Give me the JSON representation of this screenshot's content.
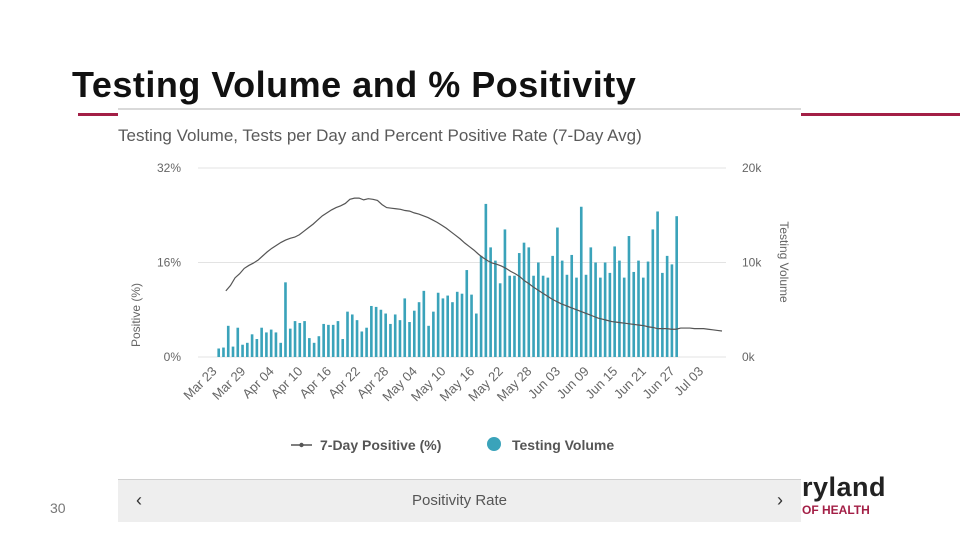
{
  "slide": {
    "title": "Testing Volume and % Positivity",
    "page_number": "30",
    "logo_main": "ryland",
    "logo_sub": "OF HEALTH"
  },
  "colors": {
    "accent": "#a31f46",
    "bar": "#3aa3ba",
    "line": "#555555"
  },
  "panel": {
    "nav_label": "Positivity Rate",
    "prev_icon": "‹",
    "next_icon": "›"
  },
  "chart_data": {
    "type": "bar+line",
    "title": "Testing Volume, Tests per Day and Percent Positive Rate (7-Day Avg)",
    "ylabel_left": "Positive (%)",
    "ylabel_right": "Testing Volume",
    "left_ticks": [
      "32%",
      "16%",
      "0%"
    ],
    "right_ticks": [
      "20k",
      "10k",
      "0k"
    ],
    "ylim_left": [
      0,
      32
    ],
    "ylim_right": [
      0,
      20000
    ],
    "x_tick_labels": [
      "Mar 23",
      "Mar 29",
      "Apr 04",
      "Apr 10",
      "Apr 16",
      "Apr 22",
      "Apr 28",
      "May 04",
      "May 10",
      "May 16",
      "May 22",
      "May 28",
      "Jun 03",
      "Jun 09",
      "Jun 15",
      "Jun 21",
      "Jun 27",
      "Jul 03"
    ],
    "legend": [
      {
        "label": "7-Day Positive (%)",
        "marker": "line"
      },
      {
        "label": "Testing Volume",
        "marker": "circle"
      }
    ],
    "series": [
      {
        "name": "Testing Volume",
        "type": "bar",
        "axis": "right",
        "start": "Mar 21",
        "values": [
          900,
          1000,
          3300,
          1100,
          3100,
          1300,
          1500,
          2400,
          1900,
          3100,
          2600,
          2900,
          2600,
          1500,
          7900,
          3000,
          3800,
          3600,
          3800,
          2000,
          1500,
          2200,
          3500,
          3400,
          3400,
          3800,
          1900,
          4800,
          4500,
          3900,
          2700,
          3100,
          5400,
          5300,
          5000,
          4600,
          3500,
          4500,
          3900,
          6200,
          3700,
          4900,
          5800,
          7000,
          3300,
          4800,
          6800,
          6200,
          6500,
          5800,
          6900,
          6700,
          9200,
          6600,
          4600,
          10700,
          16200,
          11600,
          10200,
          7800,
          13500,
          8600,
          8600,
          11000,
          12100,
          11600,
          8600,
          10000,
          8600,
          8400,
          10700,
          13700,
          10200,
          8700,
          10800,
          8400,
          15900,
          8700,
          11600,
          10000,
          8400,
          10000,
          8900,
          11700,
          10200,
          8400,
          12800,
          9000,
          10200,
          8400,
          10100,
          13500,
          15400,
          8900,
          10700,
          9800,
          14900
        ]
      },
      {
        "name": "7-Day Positive (%)",
        "type": "line",
        "axis": "left",
        "start": "Mar 26",
        "values": [
          11.2,
          12.1,
          13.4,
          14.1,
          15.0,
          15.5,
          15.9,
          16.4,
          17.1,
          17.8,
          18.4,
          18.9,
          19.4,
          19.8,
          20.1,
          20.3,
          20.7,
          21.3,
          21.9,
          22.5,
          23.2,
          23.9,
          24.4,
          24.9,
          25.3,
          25.6,
          26.0,
          26.7,
          26.9,
          26.9,
          26.6,
          26.8,
          26.7,
          26.5,
          25.8,
          25.3,
          25.2,
          25.1,
          25.0,
          24.8,
          24.7,
          24.4,
          24.2,
          23.9,
          23.6,
          23.2,
          22.8,
          22.3,
          21.8,
          21.2,
          20.6,
          20.0,
          19.3,
          18.7,
          18.1,
          17.4,
          16.8,
          16.3,
          15.9,
          15.7,
          15.4,
          15.0,
          14.5,
          14.1,
          13.6,
          12.9,
          12.4,
          11.8,
          11.3,
          10.8,
          10.3,
          9.8,
          9.4,
          9.0,
          8.7,
          8.4,
          8.1,
          7.8,
          7.5,
          7.2,
          6.9,
          6.6,
          6.4,
          6.2,
          6.0,
          5.9,
          5.8,
          5.7,
          5.6,
          5.5,
          5.4,
          5.3,
          5.1,
          5.0,
          4.8,
          4.8,
          4.8,
          4.7,
          4.7,
          4.9,
          4.9,
          4.9,
          4.8,
          4.8,
          4.8,
          4.7,
          4.6,
          4.5,
          4.4
        ]
      }
    ]
  }
}
